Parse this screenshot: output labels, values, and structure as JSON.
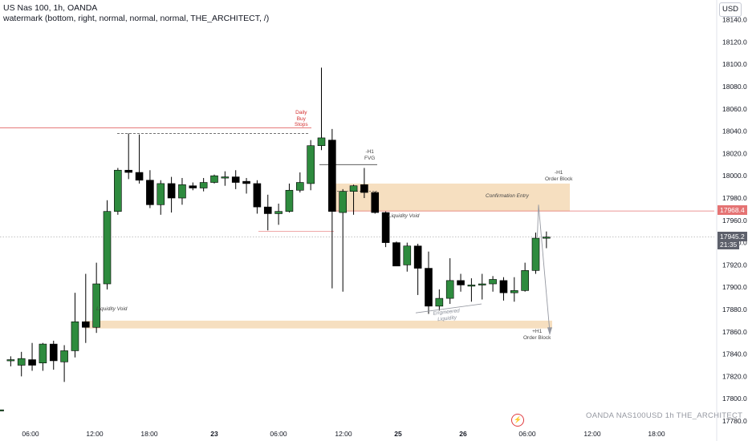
{
  "header": {
    "title": "US Nas 100, 1h, OANDA",
    "watermark_line": "watermark (bottom, right, normal, normal, normal, THE_ARCHITECT, /)"
  },
  "currency": "USD",
  "watermark_text": "OANDA   NAS100USD 1h   THE_ARCHITECT",
  "chart_data": {
    "type": "candlestick",
    "title": "US Nas 100, 1h, OANDA",
    "xlabel": "",
    "ylabel": "",
    "ylim": [
      17776,
      18148
    ],
    "y_ticks": [
      18140.0,
      18120.0,
      18100.0,
      18080.0,
      18060.0,
      18040.0,
      18020.0,
      18000.0,
      17980.0,
      17960.0,
      17940.0,
      17920.0,
      17900.0,
      17880.0,
      17860.0,
      17840.0,
      17820.0,
      17800.0,
      17780.0
    ],
    "x_ticks": [
      "06:00",
      "12:00",
      "18:00",
      "23",
      "06:00",
      "12:00",
      "25",
      "26",
      "06:00",
      "12:00",
      "18:00"
    ],
    "bold_x_ticks": [
      "23",
      "25",
      "26"
    ],
    "grid": false,
    "colors": {
      "up": "#2e8b3e",
      "down": "#000000",
      "wick": "#000000",
      "zone": "#f6dfc0",
      "red_line": "#e57373",
      "current_line": "#888888"
    },
    "candles": [
      {
        "o": 17790,
        "h": 17790,
        "l": 17790,
        "c": 17790
      },
      {
        "o": 17835,
        "h": 17838,
        "l": 17829,
        "c": 17835
      },
      {
        "o": 17830,
        "h": 17842,
        "l": 17820,
        "c": 17836
      },
      {
        "o": 17835,
        "h": 17850,
        "l": 17825,
        "c": 17830
      },
      {
        "o": 17832,
        "h": 17850,
        "l": 17825,
        "c": 17849
      },
      {
        "o": 17849,
        "h": 17852,
        "l": 17826,
        "c": 17834
      },
      {
        "o": 17833,
        "h": 17848,
        "l": 17815,
        "c": 17843
      },
      {
        "o": 17843,
        "h": 17895,
        "l": 17837,
        "c": 17869
      },
      {
        "o": 17869,
        "h": 17912,
        "l": 17850,
        "c": 17864
      },
      {
        "o": 17864,
        "h": 17922,
        "l": 17859,
        "c": 17903
      },
      {
        "o": 17903,
        "h": 17978,
        "l": 17898,
        "c": 17968
      },
      {
        "o": 17968,
        "h": 18007,
        "l": 17965,
        "c": 18005
      },
      {
        "o": 18005,
        "h": 18038,
        "l": 17997,
        "c": 18003
      },
      {
        "o": 18003,
        "h": 18037,
        "l": 17993,
        "c": 17996
      },
      {
        "o": 17996,
        "h": 18005,
        "l": 17971,
        "c": 17974
      },
      {
        "o": 17974,
        "h": 17996,
        "l": 17965,
        "c": 17993
      },
      {
        "o": 17993,
        "h": 17999,
        "l": 17967,
        "c": 17980
      },
      {
        "o": 17980,
        "h": 17998,
        "l": 17974,
        "c": 17992
      },
      {
        "o": 17991,
        "h": 17994,
        "l": 17987,
        "c": 17989
      },
      {
        "o": 17989,
        "h": 17998,
        "l": 17986,
        "c": 17994
      },
      {
        "o": 17994,
        "h": 18001,
        "l": 17993,
        "c": 18000
      },
      {
        "o": 17999,
        "h": 18004,
        "l": 17991,
        "c": 17999
      },
      {
        "o": 17999,
        "h": 18005,
        "l": 17988,
        "c": 17994
      },
      {
        "o": 17995,
        "h": 17998,
        "l": 17984,
        "c": 17993
      },
      {
        "o": 17993,
        "h": 17996,
        "l": 17966,
        "c": 17972
      },
      {
        "o": 17972,
        "h": 17983,
        "l": 17951,
        "c": 17966
      },
      {
        "o": 17966,
        "h": 17975,
        "l": 17956,
        "c": 17968
      },
      {
        "o": 17968,
        "h": 17993,
        "l": 17967,
        "c": 17987
      },
      {
        "o": 17987,
        "h": 18003,
        "l": 17985,
        "c": 17994
      },
      {
        "o": 17993,
        "h": 18032,
        "l": 17987,
        "c": 18027
      },
      {
        "o": 18027,
        "h": 18097,
        "l": 18023,
        "c": 18034
      },
      {
        "o": 18032,
        "h": 18042,
        "l": 17899,
        "c": 17968
      },
      {
        "o": 17967,
        "h": 17988,
        "l": 17896,
        "c": 17986
      },
      {
        "o": 17986,
        "h": 17992,
        "l": 17965,
        "c": 17991
      },
      {
        "o": 17992,
        "h": 18007,
        "l": 17980,
        "c": 17985
      },
      {
        "o": 17985,
        "h": 17986,
        "l": 17966,
        "c": 17967
      },
      {
        "o": 17967,
        "h": 17968,
        "l": 17936,
        "c": 17940
      },
      {
        "o": 17940,
        "h": 17941,
        "l": 17919,
        "c": 17919
      },
      {
        "o": 17920,
        "h": 17940,
        "l": 17914,
        "c": 17937
      },
      {
        "o": 17937,
        "h": 17939,
        "l": 17893,
        "c": 17917
      },
      {
        "o": 17917,
        "h": 17932,
        "l": 17876,
        "c": 17883
      },
      {
        "o": 17883,
        "h": 17898,
        "l": 17879,
        "c": 17890
      },
      {
        "o": 17890,
        "h": 17926,
        "l": 17885,
        "c": 17906
      },
      {
        "o": 17906,
        "h": 17912,
        "l": 17896,
        "c": 17902
      },
      {
        "o": 17902,
        "h": 17908,
        "l": 17887,
        "c": 17902
      },
      {
        "o": 17902,
        "h": 17912,
        "l": 17889,
        "c": 17903
      },
      {
        "o": 17903,
        "h": 17910,
        "l": 17896,
        "c": 17907
      },
      {
        "o": 17906,
        "h": 17909,
        "l": 17888,
        "c": 17895
      },
      {
        "o": 17895,
        "h": 17909,
        "l": 17887,
        "c": 17897
      },
      {
        "o": 17897,
        "h": 17922,
        "l": 17896,
        "c": 17915
      },
      {
        "o": 17915,
        "h": 17949,
        "l": 17912,
        "c": 17944
      },
      {
        "o": 17944,
        "h": 17950,
        "l": 17935,
        "c": 17945
      }
    ],
    "zones": [
      {
        "y_top": 17993,
        "y_bottom": 17968
      },
      {
        "y_top": 17870,
        "y_bottom": 17863
      }
    ],
    "horizontal_lines": [
      {
        "price": 18043,
        "style": "red"
      },
      {
        "price": 17968.4,
        "style": "red-thin"
      },
      {
        "price": 17945.2,
        "style": "current-dotted"
      }
    ],
    "annotations": [
      {
        "text": "Daily\nBuy\nStops",
        "color": "red"
      },
      {
        "text": "-H1\nFVG"
      },
      {
        "text": "-H1\nOrder Block"
      },
      {
        "text": "Confirmation Entry",
        "style": "italic"
      },
      {
        "text": "Liquidity Void",
        "style": "italic"
      },
      {
        "text": "Liquidity Void",
        "style": "italic"
      },
      {
        "text": "Engineered\nLiquidity",
        "style": "italic"
      },
      {
        "text": "+H1\nOrder Block"
      }
    ],
    "price_labels": {
      "red_level": "17968.4",
      "current_price": "17945.2",
      "countdown": "21:35"
    }
  }
}
